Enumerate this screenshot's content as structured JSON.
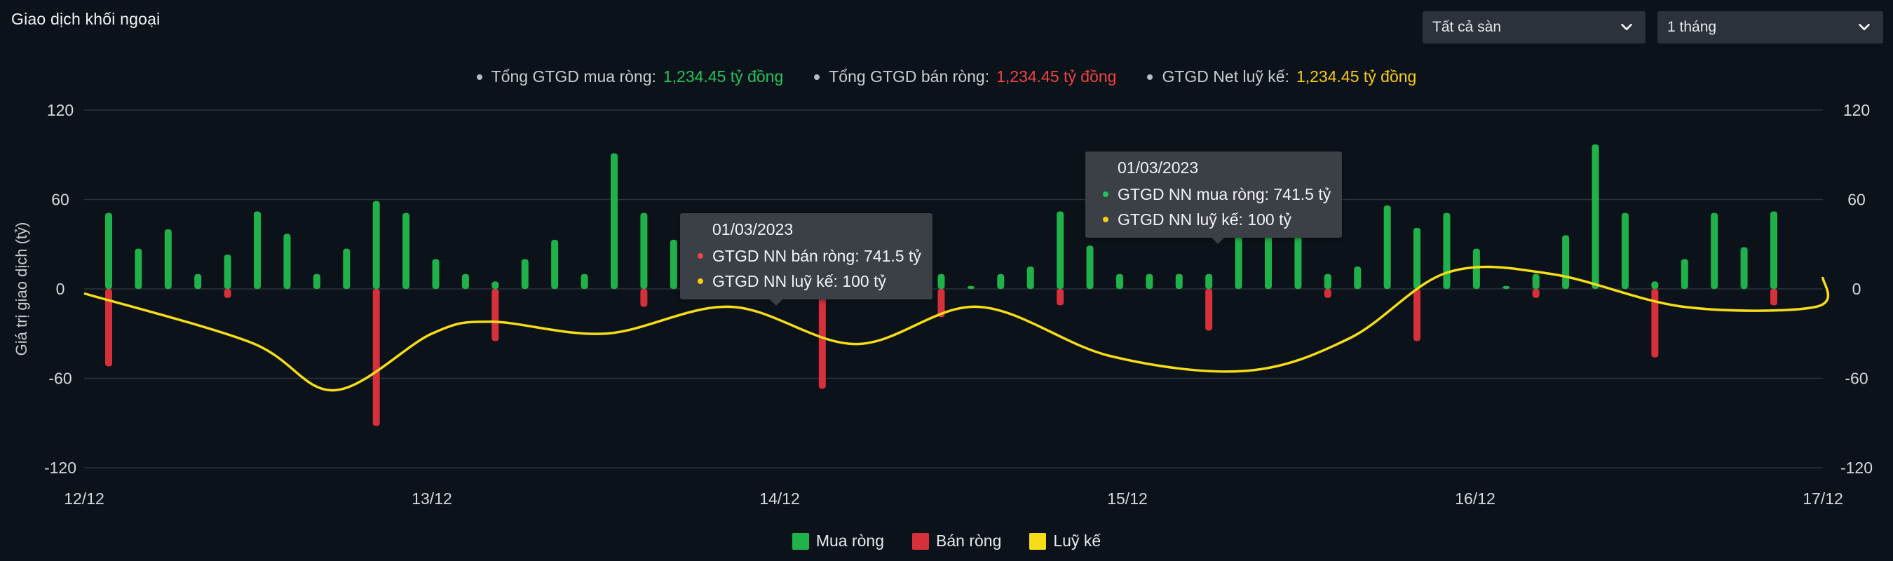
{
  "header": {
    "title": "Giao dịch khối ngoại"
  },
  "filters": {
    "exchange": "Tất cả sàn",
    "period": "1 tháng"
  },
  "summary": [
    {
      "label": "Tổng GTGD mua ròng:",
      "value": "1,234.45 tỷ đồng",
      "color": "#22c55e"
    },
    {
      "label": "Tổng GTGD bán ròng:",
      "value": "1,234.45 tỷ đồng",
      "color": "#ef4444"
    },
    {
      "label": "GTGD Net luỹ kế:",
      "value": "1,234.45 tỷ đồng",
      "color": "#facc15"
    }
  ],
  "tooltips": [
    {
      "date": "01/03/2023",
      "rows": [
        {
          "label": "GTGD NN bán ròng:",
          "value": "741.5 tỷ",
          "color": "#ef4444"
        },
        {
          "label": "GTGD NN luỹ kế:",
          "value": "100 tỷ",
          "color": "#facc15"
        }
      ]
    },
    {
      "date": "01/03/2023",
      "rows": [
        {
          "label": "GTGD NN mua ròng:",
          "value": "741.5 tỷ",
          "color": "#22c55e"
        },
        {
          "label": "GTGD NN luỹ kế:",
          "value": "100 tỷ",
          "color": "#facc15"
        }
      ]
    }
  ],
  "chart_data": {
    "type": "bar",
    "ylabel": "Giá trị giao dịch (tỷ)",
    "ylim": [
      -120,
      120
    ],
    "yticks": [
      120,
      60,
      0,
      -60,
      -120
    ],
    "ytick_labels": [
      "120",
      "60",
      "0",
      "-60",
      "-120"
    ],
    "xticks": [
      "12/12",
      "13/12",
      "14/12",
      "15/12",
      "16/12",
      "17/12"
    ],
    "grid": true,
    "legend_position": "bottom",
    "colors": {
      "buy": "#1fb24a",
      "sell": "#d6303a",
      "cumulative": "#f5dd18"
    },
    "series": [
      {
        "name": "Mua ròng",
        "values": [
          51,
          27,
          40,
          10,
          23,
          52,
          37,
          10,
          27,
          59,
          51,
          20,
          10,
          5,
          20,
          33,
          10,
          91,
          51,
          33,
          5,
          15,
          10,
          5,
          10,
          20,
          5,
          10,
          10,
          2,
          10,
          15,
          52,
          29,
          10,
          10,
          10,
          10,
          51,
          51,
          51,
          10,
          15,
          56,
          41,
          51,
          27,
          2,
          10,
          36,
          97,
          51,
          5,
          20,
          51,
          28,
          52
        ]
      },
      {
        "name": "Bán ròng",
        "values": [
          -52,
          0,
          0,
          0,
          -6,
          0,
          0,
          0,
          0,
          -92,
          0,
          0,
          0,
          -35,
          0,
          0,
          0,
          0,
          -12,
          0,
          0,
          0,
          -6,
          0,
          -67,
          0,
          0,
          0,
          -19,
          0,
          0,
          0,
          -11,
          0,
          0,
          0,
          0,
          -28,
          0,
          0,
          0,
          -6,
          0,
          0,
          -35,
          0,
          0,
          0,
          -6,
          0,
          0,
          0,
          -46,
          0,
          0,
          0,
          -11
        ]
      },
      {
        "name": "Luỹ kế",
        "x": [
          0,
          0.48,
          0.72,
          1.0,
          1.17,
          1.5,
          1.86,
          2.22,
          2.57,
          2.95,
          3.34,
          3.64,
          3.92,
          4.22,
          4.6,
          4.98,
          5.0
        ],
        "values": [
          -3,
          -36,
          -68,
          -30,
          -22,
          -30,
          -12,
          -37,
          -12,
          -45,
          -55,
          -33,
          11,
          10,
          -12,
          -12,
          8
        ]
      }
    ]
  }
}
